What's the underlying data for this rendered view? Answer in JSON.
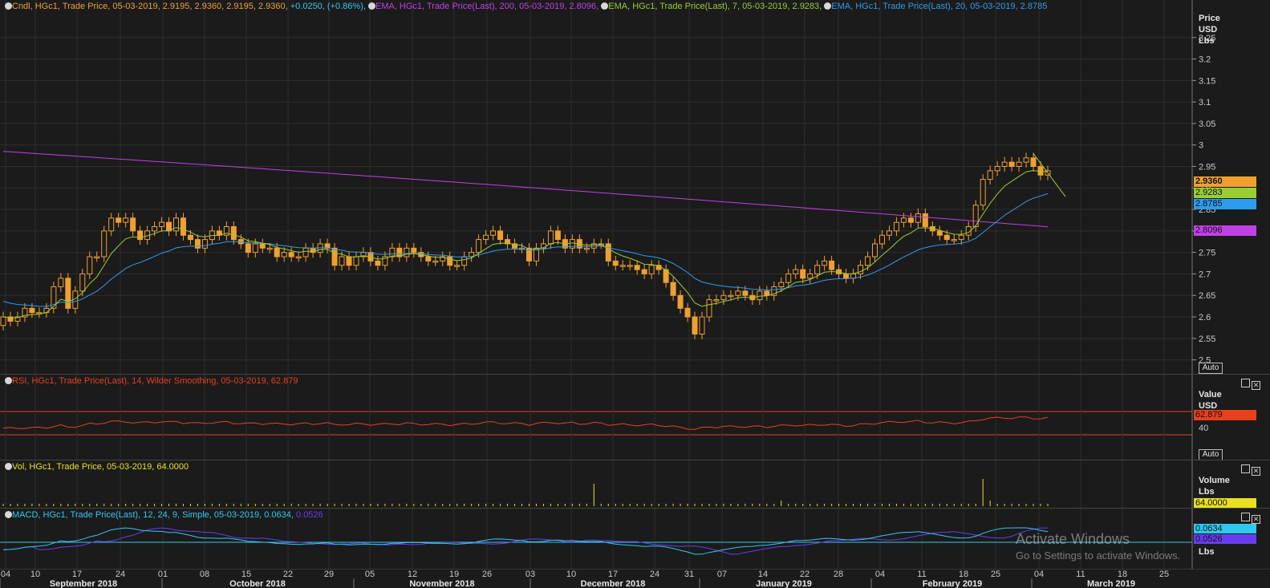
{
  "accent_colors": {
    "candle": "#f0a030",
    "ema200": "#c040e8",
    "ema7": "#9acd32",
    "ema20": "#2d9cf0",
    "rsi": "#e8401c",
    "volume": "#e8e020",
    "macd": "#30c8f0",
    "signal": "#6a3cf0"
  },
  "price_panel": {
    "icon": "chart-legend-icon",
    "legends": [
      {
        "text": "Cndl, HGc1, Trade Price, 05-03-2019, 2.9195, 2.9360, 2.9195, 2.9360, ",
        "change": "+0.0250, (+0.86%),",
        "color": "#f0a030"
      },
      {
        "text": "EMA, HGc1, Trade Price(Last), 200, 05-03-2019, 2.8096,",
        "color": "#c040e8"
      },
      {
        "text": "EMA, HGc1, Trade Price(Last), 7, 05-03-2019, 2.9283,",
        "color": "#9acd32"
      },
      {
        "text": "EMA, HGc1, Trade Price(Last), 20, 05-03-2019, 2.8785",
        "color": "#2d9cf0"
      }
    ],
    "axis_header": [
      "Price",
      "USD",
      "Lbs"
    ],
    "auto": "Auto",
    "badges": [
      {
        "text": "2.9360",
        "color": "#f0a030"
      },
      {
        "text": "2.9283",
        "color": "#9acd32"
      },
      {
        "text": "2.8785",
        "color": "#2d9cf0"
      },
      {
        "text": "2.8096",
        "color": "#c040e8"
      }
    ]
  },
  "rsi_panel": {
    "legend": "RSI, HGc1, Trade Price(Last), 14, Wilder Smoothing, 05-03-2019, 62.879",
    "axis_header": [
      "Value",
      "USD"
    ],
    "badge": "62.879",
    "level_label": "40",
    "auto": "Auto"
  },
  "vol_panel": {
    "legend": "Vol, HGc1, Trade Price, 05-03-2019, 64.0000",
    "axis_header": [
      "Volume",
      "Lbs"
    ],
    "badge": "64.0000"
  },
  "macd_panel": {
    "legend": "MACD, HGc1, Trade Price(Last), 12, 24, 9, Simple, 05-03-2019, 0.0634, ",
    "legend_signal": "0.0526",
    "axis_header": [
      "Lbs"
    ],
    "badges": [
      {
        "text": "0.0634",
        "color": "#30c8f0"
      },
      {
        "text": "0.0526",
        "color": "#6a3cf0"
      }
    ]
  },
  "watermark": {
    "line1": "Activate Windows",
    "line2": "Go to Settings to activate Windows."
  },
  "chart_data": {
    "type": "line",
    "y_ticks": [
      2.5,
      2.55,
      2.6,
      2.65,
      2.7,
      2.75,
      2.8,
      2.85,
      2.9,
      2.95,
      3,
      3.05,
      3.1,
      3.15,
      3.2,
      3.25
    ],
    "y_tick_labels": [
      "2.5",
      "2.55",
      "2.6",
      "2.65",
      "2.7",
      "2.75",
      "2.8",
      "2.85",
      "2.9",
      "2.95",
      "3",
      "3.05",
      "3.1",
      "3.15",
      "3.2",
      "3.25"
    ],
    "ylim": [
      2.475,
      3.3
    ],
    "x_ticks": [
      "04",
      "10",
      "17",
      "24",
      "01",
      "08",
      "15",
      "22",
      "29",
      "05",
      "12",
      "19",
      "26",
      "03",
      "10",
      "17",
      "24",
      "31",
      "07",
      "14",
      "22",
      "28",
      "04",
      "11",
      "18",
      "25",
      "04",
      "11",
      "18",
      "25"
    ],
    "months": [
      "September 2018",
      "October 2018",
      "November 2018",
      "December 2018",
      "January 2019",
      "February 2019",
      "March 2019"
    ],
    "series": [
      {
        "name": "Cndl, HGc1, Trade Price",
        "type": "candlestick",
        "close": [
          2.6,
          2.59,
          2.6,
          2.62,
          2.61,
          2.61,
          2.62,
          2.67,
          2.69,
          2.62,
          2.66,
          2.7,
          2.74,
          2.74,
          2.8,
          2.83,
          2.82,
          2.83,
          2.8,
          2.78,
          2.8,
          2.81,
          2.82,
          2.8,
          2.83,
          2.79,
          2.78,
          2.76,
          2.78,
          2.8,
          2.79,
          2.81,
          2.78,
          2.77,
          2.75,
          2.77,
          2.76,
          2.76,
          2.74,
          2.75,
          2.74,
          2.74,
          2.76,
          2.75,
          2.77,
          2.76,
          2.72,
          2.74,
          2.72,
          2.74,
          2.75,
          2.73,
          2.72,
          2.74,
          2.76,
          2.74,
          2.76,
          2.75,
          2.74,
          2.73,
          2.73,
          2.74,
          2.72,
          2.72,
          2.74,
          2.75,
          2.78,
          2.79,
          2.8,
          2.78,
          2.77,
          2.76,
          2.76,
          2.73,
          2.76,
          2.77,
          2.8,
          2.78,
          2.76,
          2.78,
          2.76,
          2.76,
          2.77,
          2.77,
          2.73,
          2.72,
          2.72,
          2.72,
          2.71,
          2.7,
          2.72,
          2.71,
          2.68,
          2.65,
          2.62,
          2.6,
          2.56,
          2.6,
          2.64,
          2.64,
          2.65,
          2.65,
          2.66,
          2.65,
          2.64,
          2.66,
          2.65,
          2.67,
          2.68,
          2.7,
          2.71,
          2.69,
          2.7,
          2.72,
          2.73,
          2.71,
          2.7,
          2.69,
          2.7,
          2.72,
          2.74,
          2.77,
          2.79,
          2.8,
          2.82,
          2.83,
          2.82,
          2.84,
          2.81,
          2.8,
          2.79,
          2.78,
          2.78,
          2.79,
          2.81,
          2.86,
          2.92,
          2.94,
          2.95,
          2.96,
          2.95,
          2.96,
          2.97,
          2.95,
          2.93,
          2.94
        ]
      },
      {
        "name": "EMA 200",
        "values_start": 2.985,
        "values_end": 2.8096
      },
      {
        "name": "EMA 7",
        "last": 2.9283
      },
      {
        "name": "EMA 20",
        "last": 2.8785
      }
    ]
  }
}
